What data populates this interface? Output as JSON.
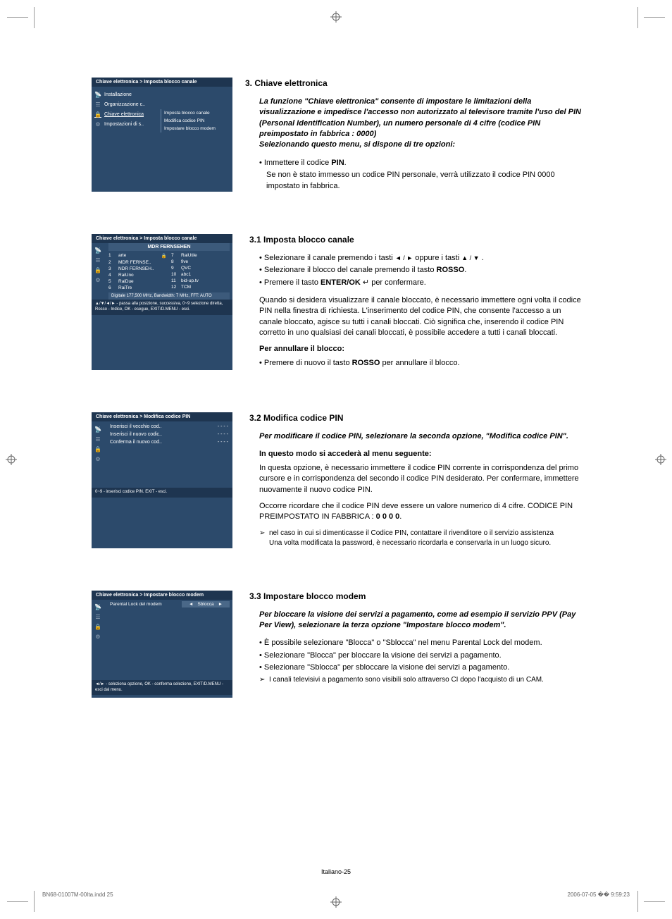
{
  "colors": {
    "menu_bg": "#2c4a6b",
    "menu_header_bg": "#1e3550",
    "menu_text": "#ffffff",
    "body_text": "#000000",
    "footer_text": "#666666",
    "page_bg": "#ffffff"
  },
  "screenshots": {
    "s1": {
      "breadcrumb": "Chiave elettronica > Imposta blocco canale",
      "items": [
        "Installazione",
        "Organizzazione c..",
        "Chiave elettronica",
        "Impostazioni di s.."
      ],
      "subitems": [
        "Imposta blocco canale",
        "Modifica codice PIN",
        "Impostare blocco modem"
      ]
    },
    "s2": {
      "breadcrumb": "Chiave elettronica > Imposta blocco canale",
      "table_header": "MDR FERNSEHEN",
      "left_channels": [
        {
          "n": "1",
          "name": "arte",
          "lock": "🔒"
        },
        {
          "n": "2",
          "name": "MDR FERNSE.."
        },
        {
          "n": "3",
          "name": "NDR FERNSEH.."
        },
        {
          "n": "4",
          "name": "RaiUno"
        },
        {
          "n": "5",
          "name": "RaiDue"
        },
        {
          "n": "6",
          "name": "RaiTre"
        }
      ],
      "right_channels": [
        {
          "n": "7",
          "name": "RaiUtile"
        },
        {
          "n": "8",
          "name": "five"
        },
        {
          "n": "9",
          "name": "QVC"
        },
        {
          "n": "10",
          "name": "abc1"
        },
        {
          "n": "11",
          "name": "bid-up.tv"
        },
        {
          "n": "12",
          "name": "TCM"
        }
      ],
      "status": "Digitale 177,500 MHz, Bandwidth: 7 MHz, FFT: AUTO",
      "footer": "▲/▼/◄/► - passa alla posizione, successiva, 0~9 selezione diretta, Rosso - Indice, OK - esegue, EXIT/D.MENU - esci."
    },
    "s3": {
      "breadcrumb": "Chiave elettronica > Modifica codice PIN",
      "rows": [
        {
          "label": "Inserisci il vecchio cod..",
          "val": "- - - -"
        },
        {
          "label": "Inserisci il nuovo codic..",
          "val": "- - - -"
        },
        {
          "label": "Conferma il nuovo cod..",
          "val": "- - - -"
        }
      ],
      "footer": "0~9 - inserisci codice PIN. EXIT - esci."
    },
    "s4": {
      "breadcrumb": "Chiave elettronica > Impostare blocco modem",
      "label": "Parental Lock del modem",
      "value": "Sblocca",
      "footer": "◄/► - seleziona opzione, OK - conferma selezione, EXIT/D.MENU - esci dal menu."
    }
  },
  "section3": {
    "heading": "3.   Chiave elettronica",
    "intro": "La funzione \"Chiave elettronica\" consente di impostare le limitazioni della visualizzazione e impedisce l'accesso non autorizzato al televisore tramite l'uso del PIN (Personal Identification Number), un numero personale di 4 cifre (codice PIN preimpostato in fabbrica : 0000)\nSelezionando questo menu, si dispone di tre opzioni:",
    "bullet_prefix": "Immettere il codice ",
    "bullet_bold": "PIN",
    "bullet_suffix": ".",
    "note": "Se non è stato immesso un codice PIN personale, verrà utilizzato il codice PIN 0000 impostato in fabbrica."
  },
  "section31": {
    "heading": "3.1 Imposta blocco canale",
    "b1a": "Selezionare il canale premendo i tasti ",
    "b1b": " oppure i tasti ",
    "b1c": " .",
    "b2a": "Selezionare il blocco del canale premendo il tasto ",
    "b2b": "ROSSO",
    "b2c": ".",
    "b3a": "Premere il tasto ",
    "b3b": "ENTER/OK",
    "b3c": " per confermare.",
    "para": "Quando si desidera visualizzare il canale bloccato, è necessario immettere ogni volta il codice PIN nella finestra di richiesta. L'inserimento del codice PIN, che consente l'accesso a un canale bloccato, agisce su tutti i canali bloccati. Ciò significa che, inserendo il codice PIN corretto in uno qualsiasi dei canali bloccati, è possibile accedere a tutti i canali bloccati.",
    "cancel_head": "Per annullare il blocco:",
    "cancel_a": "Premere di nuovo il tasto ",
    "cancel_b": "ROSSO",
    "cancel_c": " per annullare il blocco."
  },
  "section32": {
    "heading": "3.2  Modifica codice PIN",
    "intro": "Per modificare il codice PIN, selezionare la seconda opzione, \"Modifica codice PIN\".",
    "subhead": "In questo modo si accederà al menu seguente:",
    "p1": "In questa opzione, è necessario immettere il codice PIN corrente in corrispondenza del primo cursore e in corrispondenza del secondo il codice PIN desiderato. Per confermare, immettere nuovamente il nuovo codice PIN.",
    "p2a": "Occorre ricordare che il codice PIN deve essere un valore numerico di 4 cifre. CODICE PIN PREIMPOSTATO IN FABBRICA : ",
    "p2b": "0 0 0 0",
    "p2c": ".",
    "note1": "nel caso in cui si dimenticasse il Codice PIN, contattare il rivenditore o il servizio assistenza",
    "note2": "Una volta modificata la password, è necessario ricordarla e conservarla in un luogo sicuro."
  },
  "section33": {
    "heading": "3.3 Impostare blocco modem",
    "intro": "Per bloccare la visione dei servizi a pagamento, come ad esempio il servizio PPV (Pay Per View), selezionare la terza opzione \"Impostare blocco modem\".",
    "b1": "È possibile selezionare \"Blocca\" o \"Sblocca\" nel menu Parental Lock del modem.",
    "b2": "Selezionare \"Blocca\" per bloccare la visione dei servizi a pagamento.",
    "b3": "Selezionare \"Sblocca\" per sbloccare la visione dei servizi a pagamento.",
    "note": "I canali televisivi a pagamento sono visibili solo attraverso CI dopo l'acquisto di un CAM."
  },
  "footer": {
    "page_label": "Italiano-25",
    "file": "BN68-01007M-00Ita.indd   25",
    "timestamp": "2006-07-05   �� 9:59:23"
  }
}
